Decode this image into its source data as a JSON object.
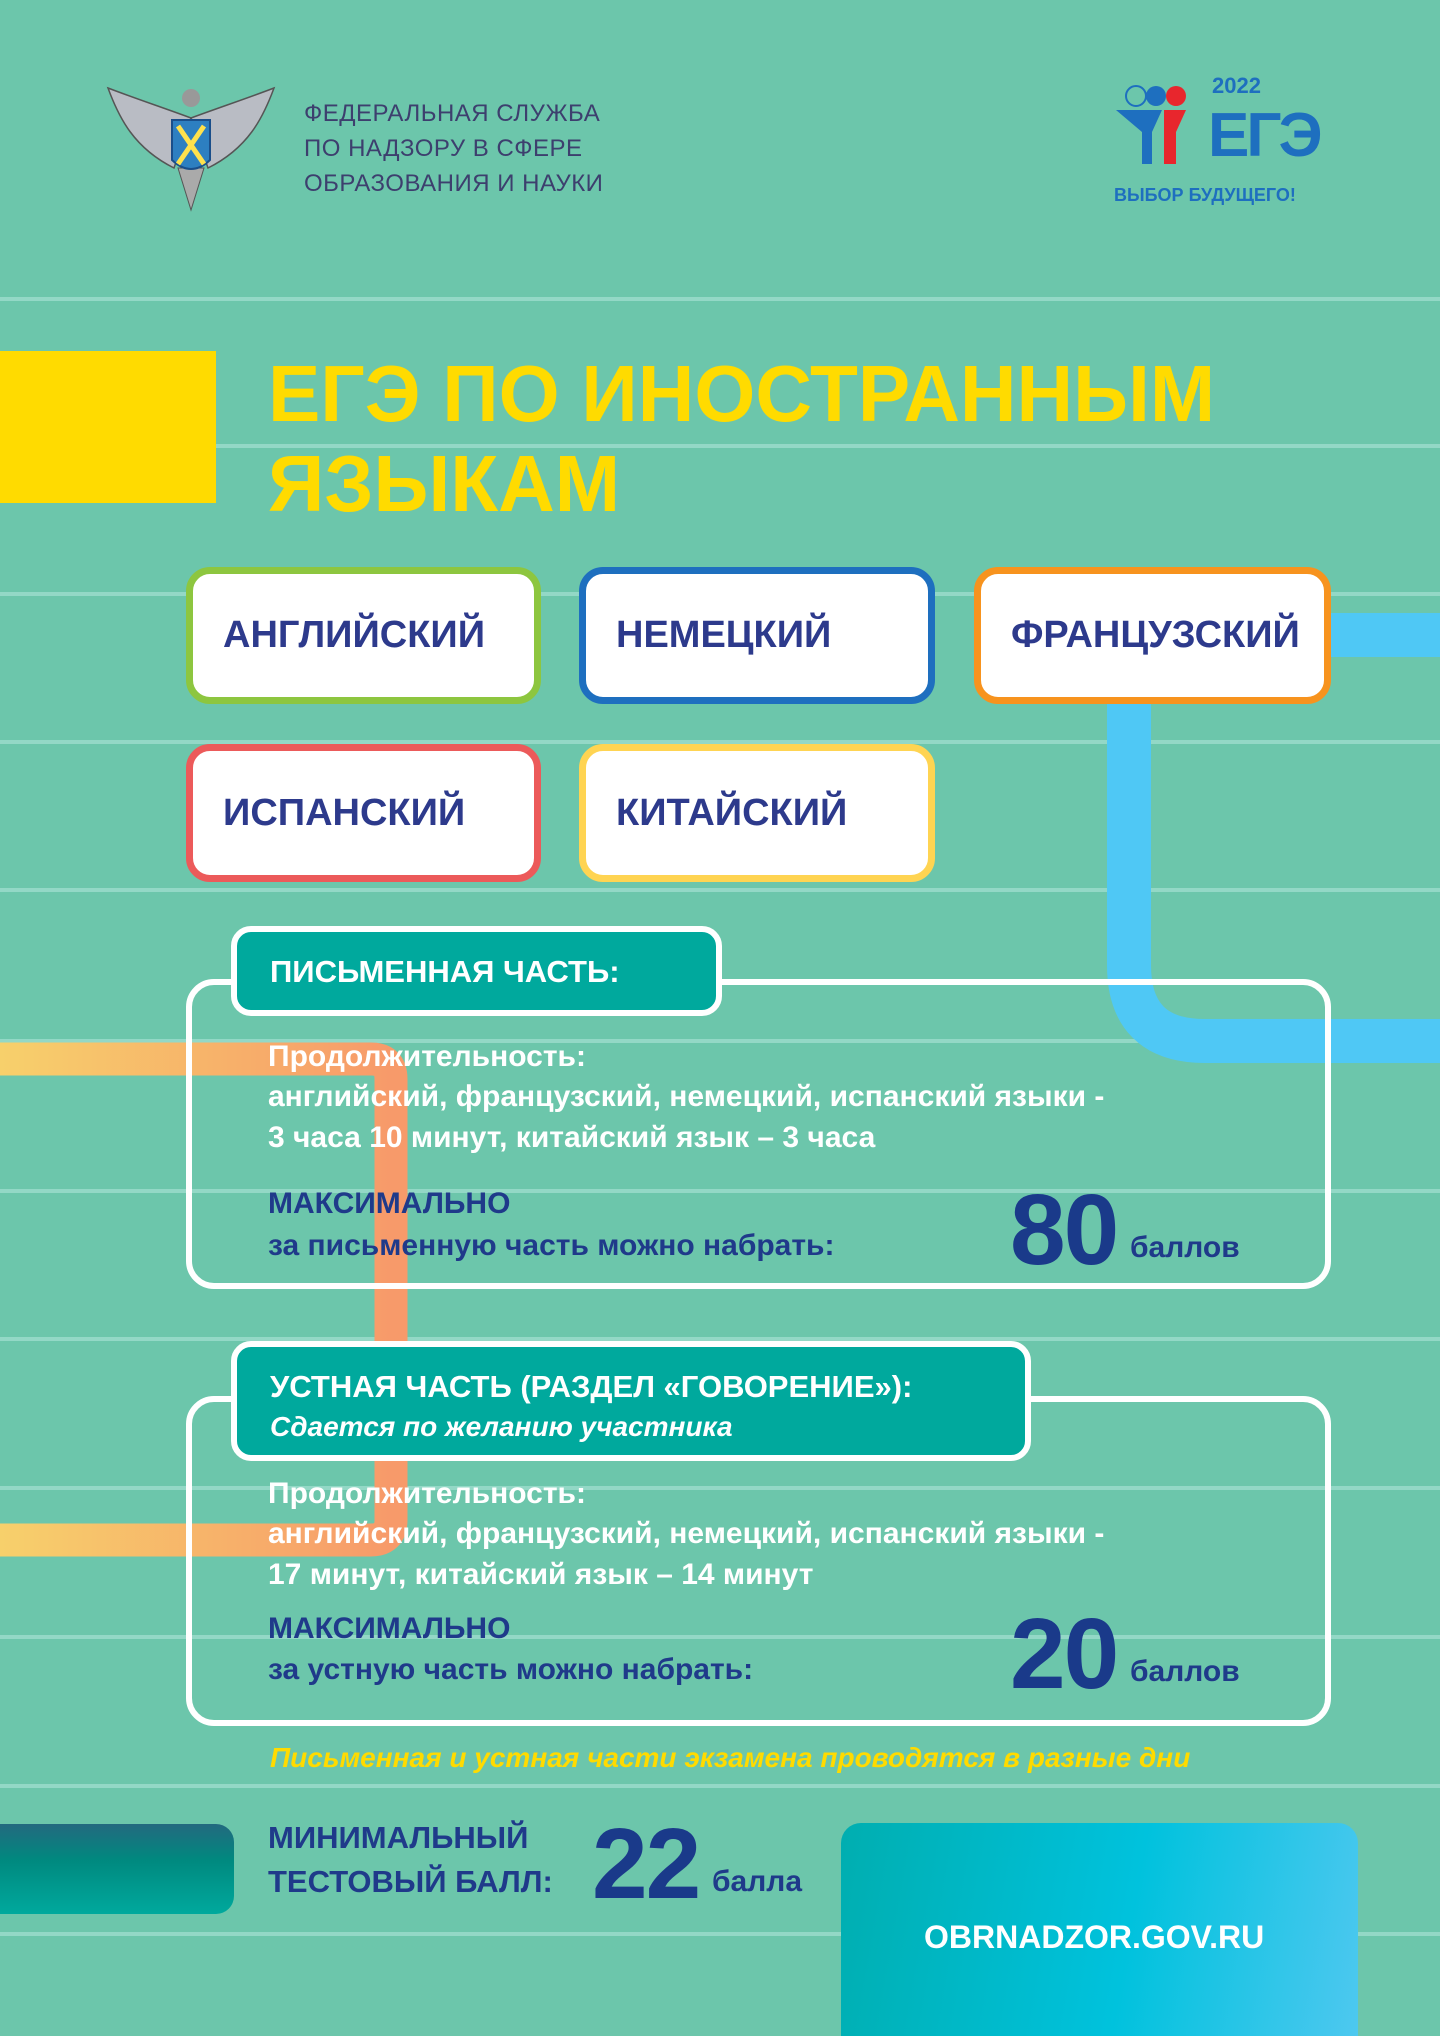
{
  "header": {
    "org_lines": [
      "ФЕДЕРАЛЬНАЯ СЛУЖБА",
      "ПО НАДЗОРУ В СФЕРЕ",
      "ОБРАЗОВАНИЯ И НАУКИ"
    ],
    "ege_logo": {
      "year": "2022",
      "word": "ЕГЭ",
      "slogan": "ВЫБОР БУДУЩЕГО!"
    }
  },
  "title": {
    "line1": "ЕГЭ ПО ИНОСТРАННЫМ",
    "line2": "ЯЗЫКАМ"
  },
  "languages": [
    {
      "label": "АНГЛИЙСКИЙ",
      "color": "#8dc63f"
    },
    {
      "label": "НЕМЕЦКИЙ",
      "color": "#1e6fbf"
    },
    {
      "label": "ФРАНЦУЗСКИЙ",
      "color": "#f7931e"
    },
    {
      "label": "ИСПАНСКИЙ",
      "color": "#ec5a5a"
    },
    {
      "label": "КИТАЙСКИЙ",
      "color": "#ffd452"
    }
  ],
  "written": {
    "heading": "ПИСЬМЕННАЯ ЧАСТЬ:",
    "duration_label": "Продолжительность:",
    "duration_line1": "английский, французский, немецкий, испанский языки  -",
    "duration_line2": "3 часа 10 минут, китайский язык – 3 часа",
    "max_label": "МАКСИМАЛЬНО",
    "max_text": "за письменную часть можно набрать:",
    "score": "80",
    "unit": "баллов"
  },
  "oral": {
    "heading": "УСТНАЯ ЧАСТЬ (РАЗДЕЛ «ГОВОРЕНИЕ»):",
    "subheading": "Сдается по желанию участника",
    "duration_label": "Продолжительность:",
    "duration_line1": "английский, французский, немецкий, испанский языки -",
    "duration_line2": "17 минут, китайский язык – 14 минут",
    "max_label": "МАКСИМАЛЬНО",
    "max_text": "за устную часть можно набрать:",
    "score": "20",
    "unit": "баллов"
  },
  "note": "Письменная и устная части экзамена проводятся в разные дни",
  "minimum": {
    "line1": "МИНИМАЛЬНЫЙ",
    "line2": "ТЕСТОВЫЙ БАЛЛ:",
    "score": "22",
    "unit": "балла"
  },
  "website": "OBRNADZOR.GOV.RU",
  "colors": {
    "background": "#6cc6ab",
    "accent_yellow": "#ffdb00",
    "teal": "#00a99d",
    "navy": "#1f3a8a",
    "pipe_blue": "#4fc8f5",
    "pipe_orange": "#f79a6a"
  }
}
